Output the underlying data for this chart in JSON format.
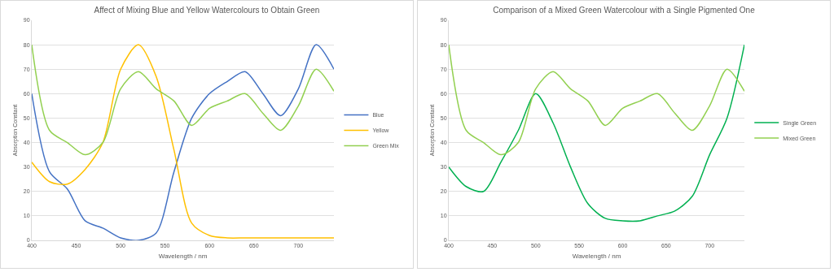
{
  "chart_data": [
    {
      "type": "line",
      "title": "Affect of Mixing Blue and Yellow Watercolours to Obtain Green",
      "xlabel": "Wavelength / nm",
      "ylabel": "Absorption Constant",
      "x": [
        400,
        420,
        440,
        460,
        480,
        500,
        520,
        540,
        560,
        580,
        600,
        620,
        640,
        660,
        680,
        700,
        720,
        740
      ],
      "series": [
        {
          "name": "Blue",
          "color": "#4472c4",
          "values": [
            60,
            28,
            21,
            8,
            5,
            1,
            0,
            3,
            28,
            50,
            60,
            65,
            69,
            60,
            51,
            62,
            80,
            70
          ]
        },
        {
          "name": "Yellow",
          "color": "#ffc000",
          "values": [
            32,
            24,
            23,
            29,
            40,
            70,
            80,
            67,
            37,
            7,
            2,
            1,
            1,
            1,
            1,
            1,
            1,
            1
          ]
        },
        {
          "name": "Green Mix",
          "color": "#92d050",
          "values": [
            80,
            45,
            40,
            35,
            40,
            62,
            69,
            62,
            57,
            47,
            54,
            57,
            60,
            52,
            45,
            55,
            70,
            61
          ]
        }
      ],
      "xlim": [
        400,
        740
      ],
      "xticks": [
        400,
        450,
        500,
        550,
        600,
        650,
        700
      ],
      "ylim": [
        0,
        90
      ],
      "yticks": [
        0,
        10,
        20,
        30,
        40,
        50,
        60,
        70,
        80,
        90
      ],
      "grid": "y",
      "legend": "right",
      "marker": "none",
      "line_style": "solid"
    },
    {
      "type": "line",
      "title": "Comparison of a Mixed Green Watercolour with a Single Pigmented One",
      "xlabel": "Wavelength / nm",
      "ylabel": "Absorption Constant",
      "x": [
        400,
        420,
        440,
        460,
        480,
        500,
        520,
        540,
        560,
        580,
        600,
        620,
        640,
        660,
        680,
        700,
        720,
        740
      ],
      "series": [
        {
          "name": "Single Green",
          "color": "#00b050",
          "values": [
            30,
            22,
            20,
            32,
            45,
            60,
            48,
            30,
            15,
            9,
            8,
            8,
            10,
            12,
            18,
            35,
            50,
            80
          ]
        },
        {
          "name": "Mixed Green",
          "color": "#92d050",
          "values": [
            80,
            45,
            40,
            35,
            40,
            62,
            69,
            62,
            57,
            47,
            54,
            57,
            60,
            52,
            45,
            55,
            70,
            61
          ]
        }
      ],
      "xlim": [
        400,
        740
      ],
      "xticks": [
        400,
        450,
        500,
        550,
        600,
        650,
        700
      ],
      "ylim": [
        0,
        90
      ],
      "yticks": [
        0,
        10,
        20,
        30,
        40,
        50,
        60,
        70,
        80,
        90
      ],
      "grid": "y",
      "legend": "right",
      "marker": "none",
      "line_style": "solid"
    }
  ]
}
